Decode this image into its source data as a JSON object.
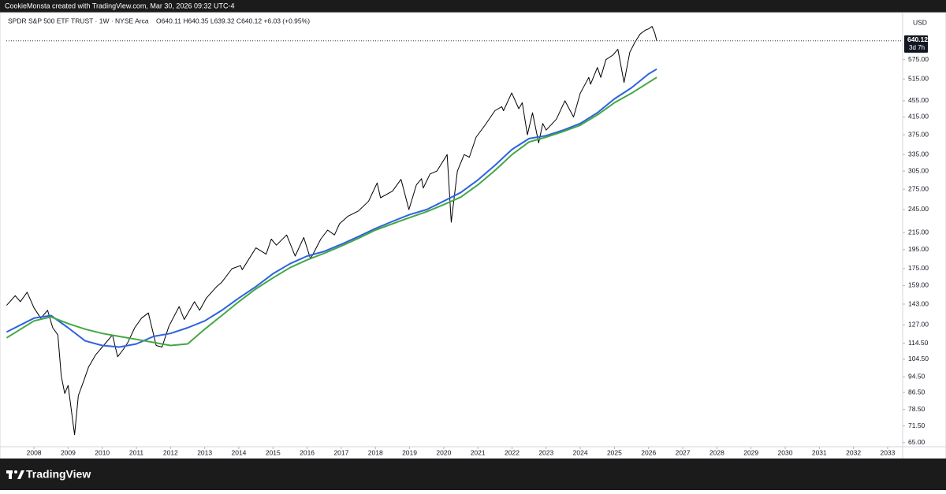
{
  "header": {
    "attribution": "CookieMonsta created with TradingView.com, Mar 30, 2026 09:32 UTC-4",
    "brand": "TradingView"
  },
  "chart_data": {
    "type": "line",
    "title": "SPDR S&P 500 ETF TRUST · 1W · NYSE Arca",
    "ohlc_label": "O640.11 H640.35 L639.32 C640.12 +6.03 (+0.95%)",
    "currency": "USD",
    "last_price": 640.12,
    "countdown": "3d 7h",
    "log_scale": true,
    "grid": false,
    "xlim": [
      2007.19,
      2033.44
    ],
    "ylim": [
      63.5,
      745
    ],
    "xticks": [
      2008,
      2009,
      2010,
      2011,
      2012,
      2013,
      2014,
      2015,
      2016,
      2017,
      2018,
      2019,
      2020,
      2021,
      2022,
      2023,
      2024,
      2025,
      2026,
      2027,
      2028,
      2029,
      2030,
      2031,
      2032,
      2033
    ],
    "yticks": [
      {
        "value": 65,
        "label": "65.00"
      },
      {
        "value": 71.5,
        "label": "71.50"
      },
      {
        "value": 78.5,
        "label": "78.50"
      },
      {
        "value": 86.5,
        "label": "86.50"
      },
      {
        "value": 94.5,
        "label": "94.50"
      },
      {
        "value": 104.5,
        "label": "104.50"
      },
      {
        "value": 114.5,
        "label": "114.50"
      },
      {
        "value": 127,
        "label": "127.00"
      },
      {
        "value": 143,
        "label": "143.00"
      },
      {
        "value": 159,
        "label": "159.00"
      },
      {
        "value": 175,
        "label": "175.00"
      },
      {
        "value": 195,
        "label": "195.00"
      },
      {
        "value": 215,
        "label": "215.00"
      },
      {
        "value": 245,
        "label": "245.00"
      },
      {
        "value": 275,
        "label": "275.00"
      },
      {
        "value": 305,
        "label": "305.00"
      },
      {
        "value": 335,
        "label": "335.00"
      },
      {
        "value": 375,
        "label": "375.00"
      },
      {
        "value": 415,
        "label": "415.00"
      },
      {
        "value": 455,
        "label": "455.00"
      },
      {
        "value": 515,
        "label": "515.00"
      },
      {
        "value": 575,
        "label": "575.00"
      }
    ],
    "series": [
      {
        "color": "#000000",
        "width": 1,
        "x": [
          2007.2,
          2007.45,
          2007.6,
          2007.8,
          2008.0,
          2008.2,
          2008.4,
          2008.55,
          2008.7,
          2008.8,
          2008.9,
          2009.0,
          2009.15,
          2009.19,
          2009.3,
          2009.45,
          2009.6,
          2009.8,
          2010.0,
          2010.3,
          2010.45,
          2010.6,
          2010.75,
          2010.95,
          2011.15,
          2011.35,
          2011.58,
          2011.75,
          2011.95,
          2012.25,
          2012.4,
          2012.7,
          2012.85,
          2013.05,
          2013.35,
          2013.5,
          2013.8,
          2014.05,
          2014.1,
          2014.5,
          2014.8,
          2014.95,
          2015.1,
          2015.4,
          2015.65,
          2015.9,
          2016.1,
          2016.4,
          2016.6,
          2016.8,
          2016.95,
          2017.2,
          2017.5,
          2017.8,
          2018.05,
          2018.15,
          2018.5,
          2018.75,
          2018.98,
          2019.2,
          2019.35,
          2019.4,
          2019.6,
          2019.8,
          2020.1,
          2020.22,
          2020.4,
          2020.6,
          2020.75,
          2020.95,
          2021.2,
          2021.5,
          2021.7,
          2021.75,
          2021.99,
          2022.2,
          2022.3,
          2022.45,
          2022.6,
          2022.78,
          2022.9,
          2023.0,
          2023.3,
          2023.55,
          2023.8,
          2024.0,
          2024.25,
          2024.3,
          2024.5,
          2024.6,
          2024.75,
          2024.95,
          2025.1,
          2025.28,
          2025.45,
          2025.6,
          2025.75,
          2025.9,
          2026.0,
          2026.1,
          2026.18,
          2026.24
        ],
        "values": [
          142,
          150,
          145,
          153,
          140,
          132,
          138,
          125,
          120,
          95,
          86,
          90,
          72,
          68,
          85,
          92,
          100,
          107,
          112,
          120,
          106,
          110,
          115,
          125,
          132,
          136,
          113,
          112,
          126,
          141,
          131,
          145,
          138,
          148,
          158,
          162,
          175,
          178,
          174,
          197,
          190,
          207,
          200,
          212,
          188,
          209,
          185,
          207,
          218,
          212,
          226,
          236,
          243,
          257,
          285,
          262,
          272,
          291,
          245,
          282,
          292,
          277,
          300,
          305,
          335,
          228,
          305,
          335,
          330,
          370,
          395,
          430,
          440,
          430,
          476,
          435,
          450,
          375,
          425,
          358,
          400,
          385,
          410,
          455,
          415,
          475,
          520,
          500,
          550,
          520,
          575,
          590,
          610,
          505,
          600,
          635,
          665,
          680,
          685,
          695,
          670,
          640.12
        ]
      },
      {
        "color": "#2d62e0",
        "width": 2,
        "x": [
          2007.2,
          2008.0,
          2008.5,
          2009.0,
          2009.5,
          2010.0,
          2010.5,
          2011.0,
          2011.5,
          2012.0,
          2012.5,
          2013.0,
          2013.5,
          2014.0,
          2014.5,
          2015.0,
          2015.5,
          2016.0,
          2016.5,
          2017.0,
          2017.5,
          2018.0,
          2018.5,
          2019.0,
          2019.5,
          2020.0,
          2020.5,
          2021.0,
          2021.5,
          2022.0,
          2022.5,
          2023.0,
          2023.5,
          2024.0,
          2024.5,
          2025.0,
          2025.5,
          2026.0,
          2026.24
        ],
        "values": [
          122,
          132,
          134,
          125,
          116,
          113,
          112,
          114,
          119,
          121,
          125,
          130,
          138,
          148,
          158,
          170,
          180,
          188,
          193,
          201,
          210,
          220,
          229,
          238,
          245,
          257,
          270,
          290,
          315,
          345,
          367,
          373,
          385,
          400,
          425,
          460,
          490,
          530,
          545
        ]
      },
      {
        "color": "#43a843",
        "width": 2,
        "x": [
          2007.2,
          2008.0,
          2008.5,
          2009.0,
          2009.5,
          2010.0,
          2010.5,
          2011.0,
          2011.5,
          2012.0,
          2012.5,
          2013.0,
          2013.5,
          2014.0,
          2014.5,
          2015.0,
          2015.5,
          2016.0,
          2016.5,
          2017.0,
          2017.5,
          2018.0,
          2018.5,
          2019.0,
          2019.5,
          2020.0,
          2020.5,
          2021.0,
          2021.5,
          2022.0,
          2022.5,
          2023.0,
          2023.5,
          2024.0,
          2024.5,
          2025.0,
          2025.5,
          2026.0,
          2026.24
        ],
        "values": [
          118,
          130,
          133,
          128,
          124,
          121,
          119,
          117,
          115,
          113,
          114,
          124,
          134,
          145,
          156,
          166,
          176,
          184,
          191,
          199,
          208,
          218,
          226,
          234,
          242,
          252,
          263,
          282,
          306,
          335,
          360,
          370,
          382,
          396,
          420,
          450,
          475,
          505,
          520
        ]
      }
    ]
  }
}
